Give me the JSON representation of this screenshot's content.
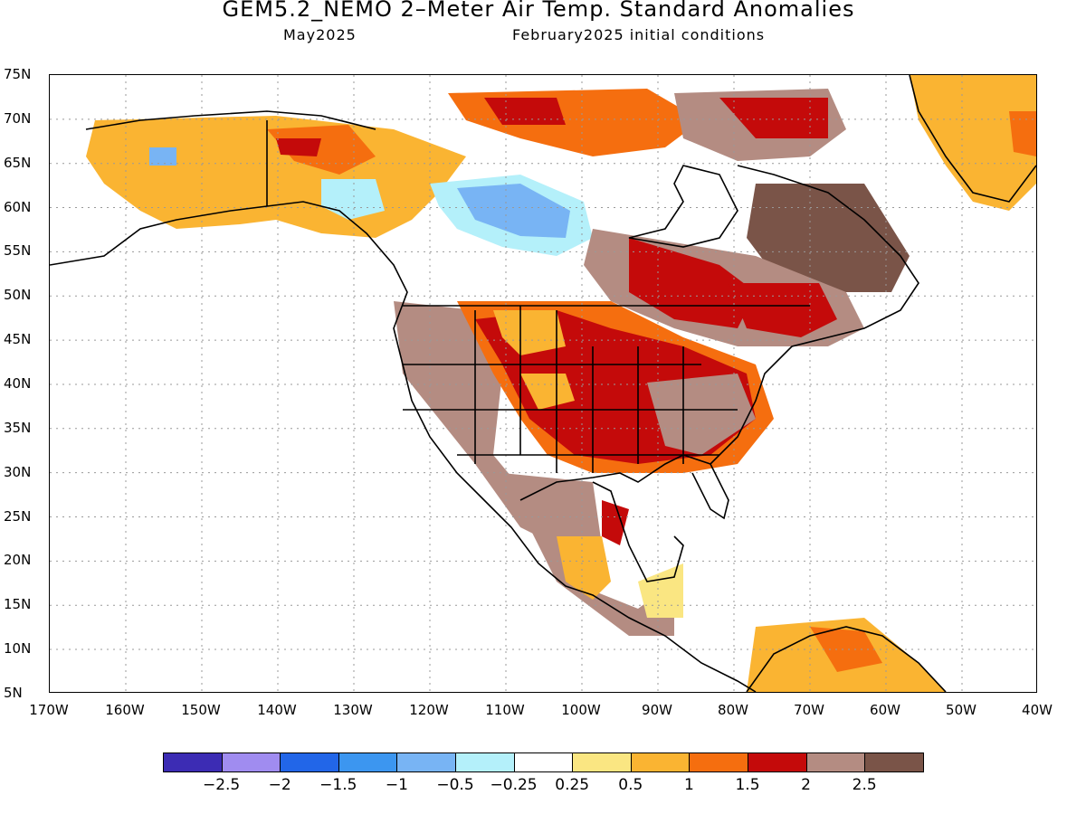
{
  "title": "GEM5.2_NEMO 2–Meter Air Temp. Standard Anomalies",
  "subtitle_left": "May2025",
  "subtitle_right": "February2025 initial conditions",
  "map": {
    "lat_labels": [
      "75N",
      "70N",
      "65N",
      "60N",
      "55N",
      "50N",
      "45N",
      "40N",
      "35N",
      "30N",
      "25N",
      "20N",
      "15N",
      "10N",
      "5N"
    ],
    "lon_labels": [
      "170W",
      "160W",
      "150W",
      "140W",
      "130W",
      "120W",
      "110W",
      "100W",
      "90W",
      "80W",
      "70W",
      "60W",
      "50W",
      "40W"
    ],
    "grid": "dotted"
  },
  "colorbar": {
    "colors": [
      "#3c2cb4",
      "#a08cf0",
      "#2266e8",
      "#3c96f0",
      "#78b4f4",
      "#b4f0fa",
      "#ffffff",
      "#fae682",
      "#fab432",
      "#f56e0f",
      "#c40a0a",
      "#b48c82",
      "#7a5448"
    ],
    "labels": [
      "−2.5",
      "−2",
      "−1.5",
      "−1",
      "−0.5",
      "−0.25",
      "0.25",
      "0.5",
      "1",
      "1.5",
      "2",
      "2.5"
    ]
  }
}
